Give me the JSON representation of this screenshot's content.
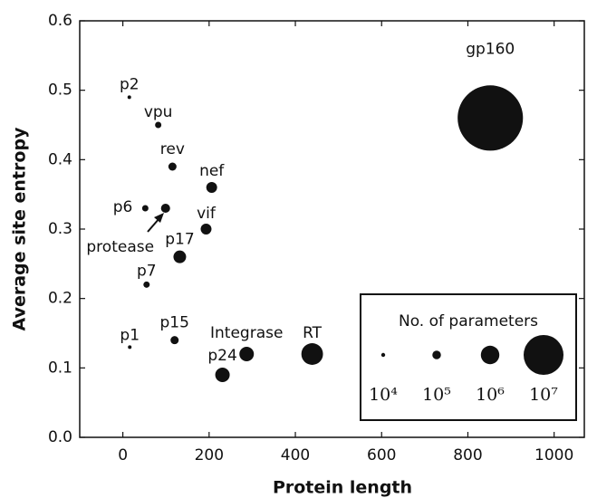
{
  "chart_data": {
    "type": "scatter",
    "xlabel": "Protein length",
    "ylabel": "Average site entropy",
    "xlim": [
      -100,
      1070
    ],
    "ylim": [
      0,
      0.6
    ],
    "xticks": [
      0,
      200,
      400,
      600,
      800,
      1000
    ],
    "yticks": [
      {
        "value": 0,
        "label": "0.0"
      },
      0.1,
      0.2,
      0.3,
      0.4,
      0.5,
      0.6
    ],
    "color": "#111111",
    "series": [
      {
        "labels": [
          "p2",
          "vpu",
          "rev",
          "nef",
          "p6",
          "protease",
          "vif",
          "p17",
          "p7",
          "p1",
          "p15",
          "p24",
          "Integrase",
          "RT",
          "gp160"
        ],
        "x": [
          15,
          82,
          115,
          206,
          52,
          99,
          193,
          132,
          55,
          16,
          120,
          231,
          287,
          439,
          852
        ],
        "values": [
          0.49,
          0.45,
          0.39,
          0.36,
          0.33,
          0.33,
          0.3,
          0.26,
          0.22,
          0.13,
          0.14,
          0.09,
          0.12,
          0.12,
          0.46
        ],
        "sizes": [
          7500,
          40000,
          86000,
          200000,
          40000,
          120000,
          200000,
          320000,
          40000,
          7500,
          86000,
          480000,
          480000,
          1600000,
          44000000
        ]
      }
    ],
    "size_legend": {
      "title": "No. of parameters",
      "values": [
        10000,
        100000,
        1000000,
        10000000
      ],
      "labels": [
        "10⁴",
        "10⁵",
        "10⁶",
        "10⁷"
      ]
    }
  }
}
